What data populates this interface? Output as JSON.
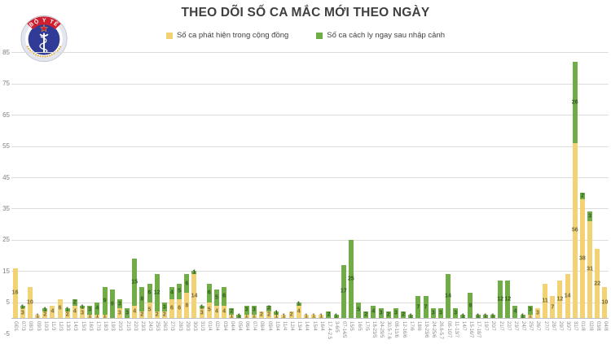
{
  "header": {
    "title": "THEO DÕI SỐ CA MẮC MỚI THEO NGÀY"
  },
  "logo": {
    "banner_text": "BỘ Y TẾ"
  },
  "chart_data": {
    "type": "bar",
    "stacked": true,
    "title": "THEO DÕI SỐ CA MẮC MỚI THEO NGÀY",
    "xlabel": "",
    "ylabel": "",
    "ylim": [
      -5,
      85
    ],
    "yticks": [
      85,
      75,
      65,
      55,
      45,
      35,
      25,
      15,
      5,
      -5
    ],
    "grid": true,
    "legend_position": "top",
    "categories": [
      "GĐ1",
      "07/3",
      "08/3",
      "09/3",
      "10/3",
      "11/3",
      "12/3",
      "13/3",
      "14/3",
      "15/3",
      "16/3",
      "17/3",
      "18/3",
      "19/3",
      "20/3",
      "21/3",
      "22/3",
      "23/3",
      "24/3",
      "25/3",
      "26/3",
      "27/3",
      "28/3",
      "29/3",
      "30/3",
      "31/3",
      "01/4",
      "02/4",
      "03/4",
      "04/4",
      "05/4",
      "06/4",
      "07/4",
      "08/4",
      "09/4",
      "10/4",
      "11/4",
      "12/4",
      "13/4",
      "14/4",
      "15/4",
      "16/4",
      "17.4-2.5",
      "3-6/5",
      "07-14/5",
      "15/5",
      "16/5",
      "17/5",
      "18-23/5",
      "24-29/5",
      "30.5-7.6",
      "08-11/6",
      "12-16/6",
      "17/6",
      "18/6",
      "19-23/6",
      "24-25/6",
      "26.6-5.7",
      "06-10/7",
      "11-13/7",
      "14/7",
      "15-16/7",
      "17-18/7",
      "19/7",
      "20/7",
      "21/7",
      "22/7",
      "23/7",
      "24/7",
      "25/7",
      "26/7",
      "27/7",
      "28/7",
      "29/7",
      "30/7",
      "31/7",
      "01/8",
      "02/8",
      "03/8",
      "04/8"
    ],
    "series": [
      {
        "name": "Số ca phát hiện trong cộng đồng",
        "color": "#F2D272",
        "label_color": "#73683a",
        "values": [
          16,
          3,
          10,
          1,
          2,
          4,
          6,
          2,
          4,
          3,
          1,
          1,
          1,
          0,
          3,
          0,
          4,
          2,
          5,
          2,
          2,
          6,
          6,
          8,
          14,
          3,
          5,
          4,
          4,
          1,
          0,
          1,
          1,
          2,
          2,
          1,
          1,
          2,
          4,
          1,
          1,
          1,
          0,
          0,
          0,
          0,
          0,
          0,
          0,
          0,
          0,
          0,
          0,
          0,
          0,
          0,
          0,
          0,
          0,
          0,
          0,
          0,
          0,
          0,
          0,
          0,
          0,
          0,
          0,
          1,
          3,
          11,
          7,
          12,
          14,
          56,
          38,
          31,
          22,
          10
        ]
      },
      {
        "name": "Số ca cách ly ngay sau nhập cảnh",
        "color": "#70AD47",
        "label_color": "#33571f",
        "values": [
          0,
          1,
          0,
          0,
          1,
          0,
          0,
          1,
          2,
          1,
          3,
          4,
          9,
          9,
          3,
          3,
          15,
          8,
          6,
          12,
          3,
          4,
          5,
          6,
          1,
          1,
          6,
          5,
          6,
          2,
          1,
          3,
          3,
          0,
          2,
          1,
          0,
          0,
          1,
          0,
          0,
          0,
          2,
          1,
          17,
          25,
          5,
          2,
          4,
          3,
          2,
          3,
          2,
          1,
          7,
          7,
          3,
          3,
          14,
          3,
          1,
          8,
          1,
          1,
          1,
          12,
          12,
          4,
          1,
          3,
          0,
          0,
          0,
          0,
          0,
          26,
          2,
          3,
          0,
          0
        ]
      }
    ]
  }
}
